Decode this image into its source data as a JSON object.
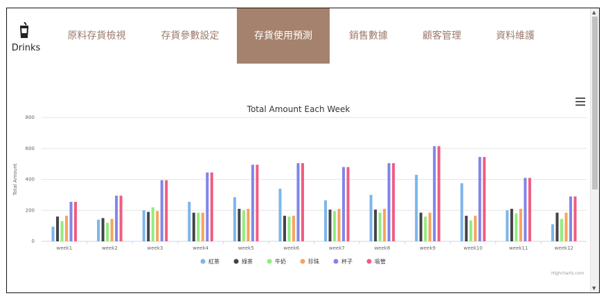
{
  "logo": {
    "text": "Drinks",
    "icon": "cup-icon"
  },
  "nav": {
    "items": [
      {
        "label": "原料存貨檢視",
        "active": false
      },
      {
        "label": "存貨參數設定",
        "active": false
      },
      {
        "label": "存貨使用預測",
        "active": true
      },
      {
        "label": "銷售數據",
        "active": false
      },
      {
        "label": "顧客管理",
        "active": false
      },
      {
        "label": "資料維護",
        "active": false
      }
    ]
  },
  "colors": {
    "nav_text": "#9c7a6c",
    "nav_active_bg": "#a5826d"
  },
  "chart_data": {
    "type": "bar",
    "title": "Total Amount Each Week",
    "xlabel": "",
    "ylabel": "Total Amount",
    "ylim": [
      0,
      800
    ],
    "yticks": [
      0,
      200,
      400,
      600,
      800
    ],
    "grid": true,
    "legend_position": "bottom",
    "categories": [
      "week1",
      "week2",
      "week3",
      "week4",
      "week5",
      "week6",
      "week7",
      "week8",
      "week9",
      "week10",
      "week11",
      "week12"
    ],
    "series": [
      {
        "name": "紅茶",
        "color": "#7cb5ec",
        "values": [
          95,
          140,
          200,
          255,
          285,
          340,
          265,
          300,
          430,
          375,
          200,
          110
        ]
      },
      {
        "name": "綠茶",
        "color": "#434348",
        "values": [
          160,
          150,
          190,
          185,
          210,
          165,
          205,
          205,
          185,
          165,
          210,
          185
        ]
      },
      {
        "name": "牛奶",
        "color": "#90ed7d",
        "values": [
          130,
          120,
          220,
          185,
          200,
          160,
          195,
          185,
          160,
          135,
          180,
          145
        ]
      },
      {
        "name": "珍珠",
        "color": "#f7a35c",
        "values": [
          165,
          145,
          195,
          185,
          210,
          165,
          210,
          210,
          185,
          165,
          210,
          185
        ]
      },
      {
        "name": "杯子",
        "color": "#8085e9",
        "values": [
          255,
          295,
          395,
          445,
          495,
          505,
          480,
          505,
          615,
          545,
          410,
          290
        ]
      },
      {
        "name": "吸管",
        "color": "#f15c80",
        "values": [
          255,
          295,
          395,
          445,
          495,
          505,
          480,
          505,
          615,
          545,
          410,
          290
        ]
      }
    ],
    "credits": "Highcharts.com"
  }
}
